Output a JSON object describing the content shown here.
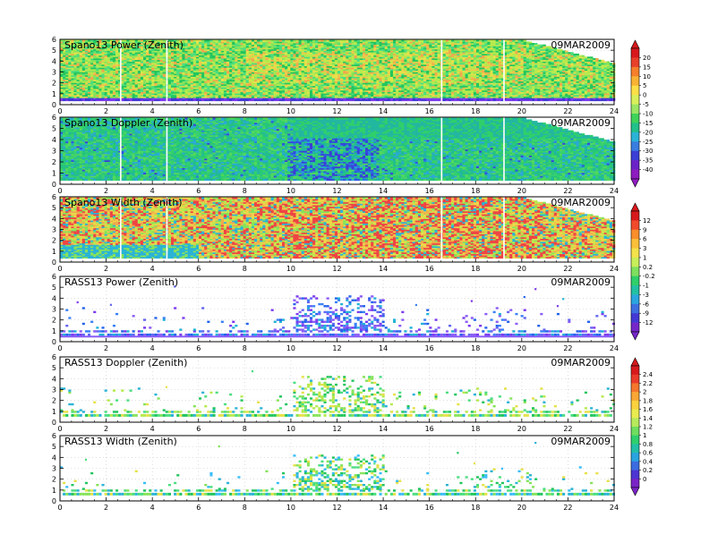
{
  "chart_data": [
    {
      "type": "heatmap",
      "title": "Spano13 Power (Zenith)",
      "date": "09MAR2009",
      "xlim": [
        0,
        24
      ],
      "ylim": [
        0,
        6
      ],
      "xticks": [
        "0",
        "2",
        "4",
        "6",
        "8",
        "10",
        "12",
        "14",
        "16",
        "18",
        "20",
        "22",
        "24"
      ],
      "yticks": [
        "0",
        "1",
        "2",
        "3",
        "4",
        "5",
        "6"
      ],
      "colorbar_group": 0
    },
    {
      "type": "heatmap",
      "title": "Spano13 Doppler (Zenith)",
      "date": "09MAR2009",
      "xlim": [
        0,
        24
      ],
      "ylim": [
        0,
        6
      ],
      "xticks": [
        "0",
        "2",
        "4",
        "6",
        "8",
        "10",
        "12",
        "14",
        "16",
        "18",
        "20",
        "22",
        "24"
      ],
      "yticks": [
        "0",
        "1",
        "2",
        "3",
        "4",
        "5",
        "6"
      ],
      "colorbar_group": 0
    },
    {
      "type": "heatmap",
      "title": "Spano13 Width (Zenith)",
      "date": "09MAR2009",
      "xlim": [
        0,
        24
      ],
      "ylim": [
        0,
        6
      ],
      "xticks": [
        "0",
        "2",
        "4",
        "6",
        "8",
        "10",
        "12",
        "14",
        "16",
        "18",
        "20",
        "22",
        "24"
      ],
      "yticks": [
        "0",
        "1",
        "2",
        "3",
        "4",
        "5",
        "6"
      ],
      "colorbar_group": 1
    },
    {
      "type": "heatmap",
      "title": "RASS13 Power (Zenith)",
      "date": "09MAR2009",
      "xlim": [
        0,
        24
      ],
      "ylim": [
        0,
        6
      ],
      "xticks": [
        "0",
        "2",
        "4",
        "6",
        "8",
        "10",
        "12",
        "14",
        "16",
        "18",
        "20",
        "22",
        "24"
      ],
      "yticks": [
        "0",
        "1",
        "2",
        "3",
        "4",
        "5",
        "6"
      ],
      "colorbar_group": 1
    },
    {
      "type": "heatmap",
      "title": "RASS13 Doppler (Zenith)",
      "date": "09MAR2009",
      "xlim": [
        0,
        24
      ],
      "ylim": [
        0,
        6
      ],
      "xticks": [
        "0",
        "2",
        "4",
        "6",
        "8",
        "10",
        "12",
        "14",
        "16",
        "18",
        "20",
        "22",
        "24"
      ],
      "yticks": [
        "0",
        "1",
        "2",
        "3",
        "4",
        "5",
        "6"
      ],
      "colorbar_group": 2
    },
    {
      "type": "heatmap",
      "title": "RASS13 Width (Zenith)",
      "date": "09MAR2009",
      "xlim": [
        0,
        24
      ],
      "ylim": [
        0,
        6
      ],
      "xticks": [
        "0",
        "2",
        "4",
        "6",
        "8",
        "10",
        "12",
        "14",
        "16",
        "18",
        "20",
        "22",
        "24"
      ],
      "yticks": [
        "0",
        "1",
        "2",
        "3",
        "4",
        "5",
        "6"
      ],
      "colorbar_group": 2
    }
  ],
  "colorbars": [
    {
      "labels": [
        "20",
        "15",
        "10",
        "5",
        "0",
        "-5",
        "-10",
        "-15",
        "-20",
        "-25",
        "-30",
        "-35",
        "-40"
      ],
      "colors": [
        "#d7191c",
        "#e8402a",
        "#f57f2a",
        "#f9b233",
        "#fde047",
        "#d9f05a",
        "#9be564",
        "#3fd25a",
        "#22c08a",
        "#2bb3d6",
        "#3a7de0",
        "#3b3fd6",
        "#6a22c8",
        "#8e1bbf"
      ]
    },
    {
      "labels": [
        "12",
        "9",
        "6",
        "3",
        "1",
        "0.2",
        "-0.2",
        "-1",
        "-3",
        "-6",
        "-9",
        "-12"
      ],
      "colors": [
        "#d7191c",
        "#ef4a2b",
        "#f98e2b",
        "#fbc03a",
        "#f3e24a",
        "#c8ee5a",
        "#7fe05e",
        "#2fcf6a",
        "#22c0a3",
        "#2aa6df",
        "#3d6fe0",
        "#4338d4",
        "#7426c9"
      ]
    },
    {
      "labels": [
        "2.4",
        "2.2",
        "2",
        "1.8",
        "1.6",
        "1.4",
        "1.2",
        "1",
        "0.8",
        "0.6",
        "0.4",
        "0.2",
        "0"
      ],
      "colors": [
        "#d7191c",
        "#ea3b2a",
        "#f5762c",
        "#f9a734",
        "#fbd13e",
        "#eaeb50",
        "#b6ea5c",
        "#6fdd60",
        "#2fcf6e",
        "#22bfa6",
        "#2aa3df",
        "#3b6ce0",
        "#4c35d2",
        "#7a24c7"
      ]
    }
  ]
}
